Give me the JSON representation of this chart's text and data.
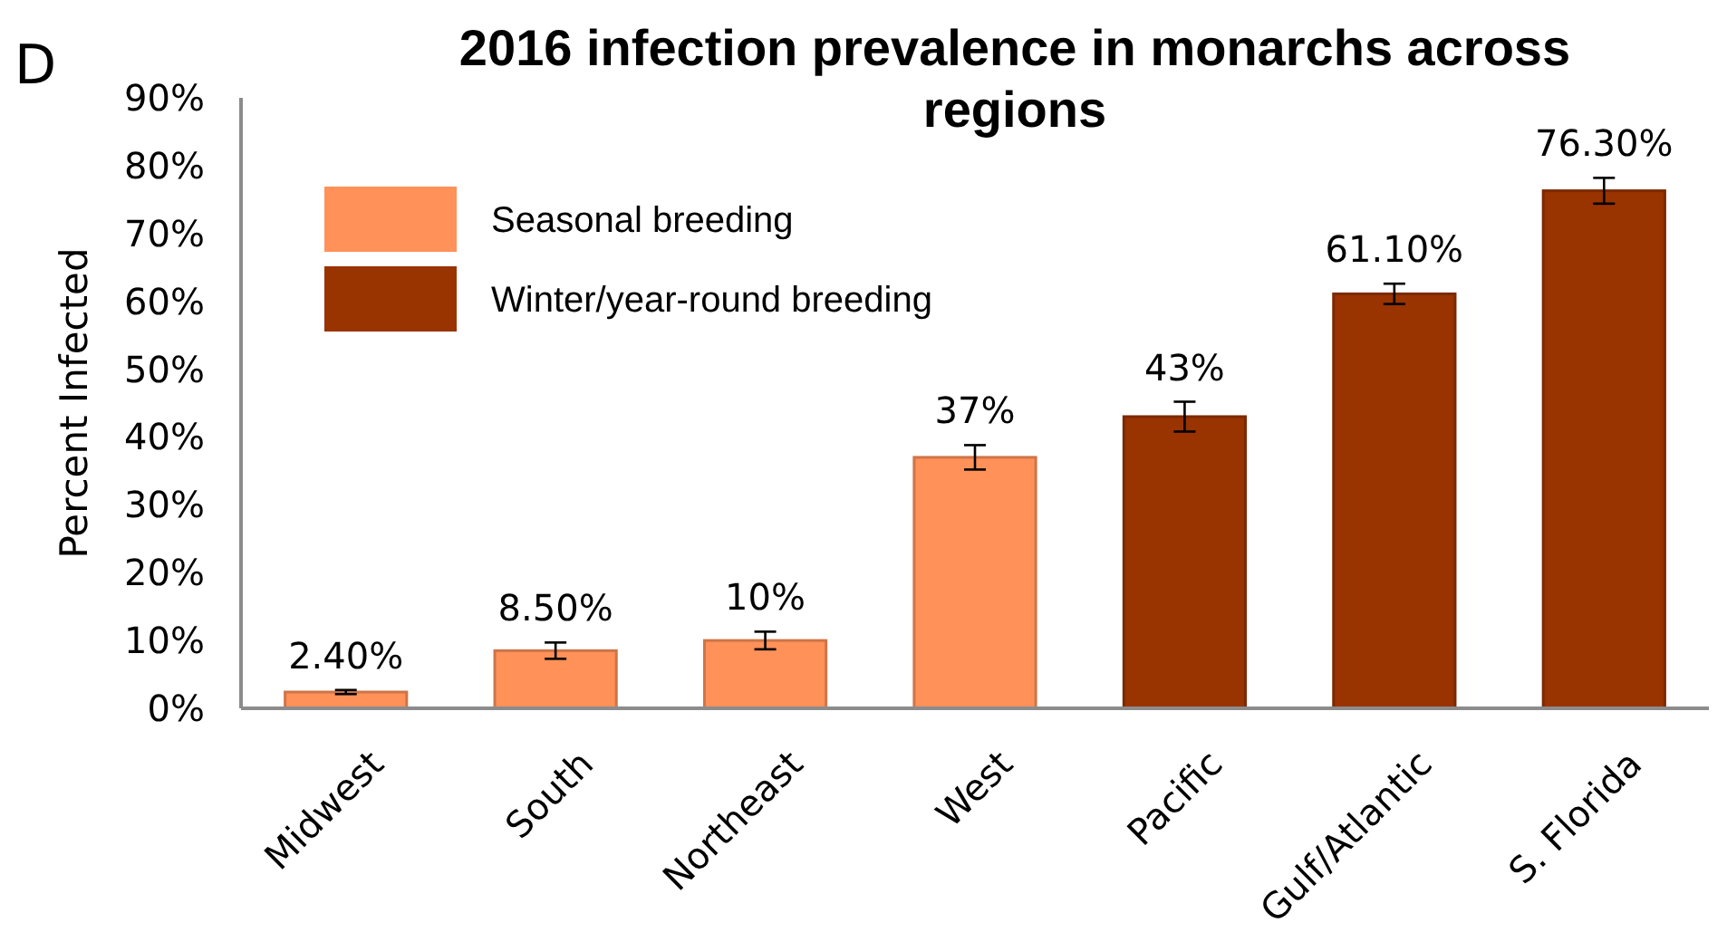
{
  "chart_data": {
    "type": "bar",
    "title": "2016 infection prevalence in monarchs across regions",
    "ylabel": "Percent Infected",
    "annotations": [
      "D"
    ],
    "categories": [
      "Midwest",
      "South",
      "Northeast",
      "West",
      "Pacific",
      "Gulf/Atlantic",
      "S. Florida"
    ],
    "series": [
      {
        "name": "Seasonal breeding",
        "color": "#ff9159",
        "values": [
          2.4,
          8.5,
          10,
          37,
          null,
          null,
          null
        ],
        "errors": [
          0.3,
          1.2,
          1.3,
          1.8,
          null,
          null,
          null
        ],
        "value_labels": [
          "2.40%",
          "8.50%",
          "10%",
          "37%",
          null,
          null,
          null
        ]
      },
      {
        "name": "Winter/year-round breeding",
        "color": "#993300",
        "values": [
          null,
          null,
          null,
          null,
          43,
          61.1,
          76.3
        ],
        "errors": [
          null,
          null,
          null,
          null,
          2.2,
          1.5,
          1.9
        ],
        "value_labels": [
          null,
          null,
          null,
          null,
          "43%",
          "61.10%",
          "76.30%"
        ]
      }
    ],
    "ylim": [
      0,
      90
    ],
    "yticks": [
      {
        "value": 0,
        "label": "0%"
      },
      {
        "value": 10,
        "label": "10%"
      },
      {
        "value": 20,
        "label": "20%"
      },
      {
        "value": 30,
        "label": "30%"
      },
      {
        "value": 40,
        "label": "40%"
      },
      {
        "value": 50,
        "label": "50%"
      },
      {
        "value": 60,
        "label": "60%"
      },
      {
        "value": 70,
        "label": "70%"
      },
      {
        "value": 80,
        "label": "80%"
      },
      {
        "value": 90,
        "label": "90%"
      }
    ],
    "grid": false,
    "legend": "top left"
  }
}
